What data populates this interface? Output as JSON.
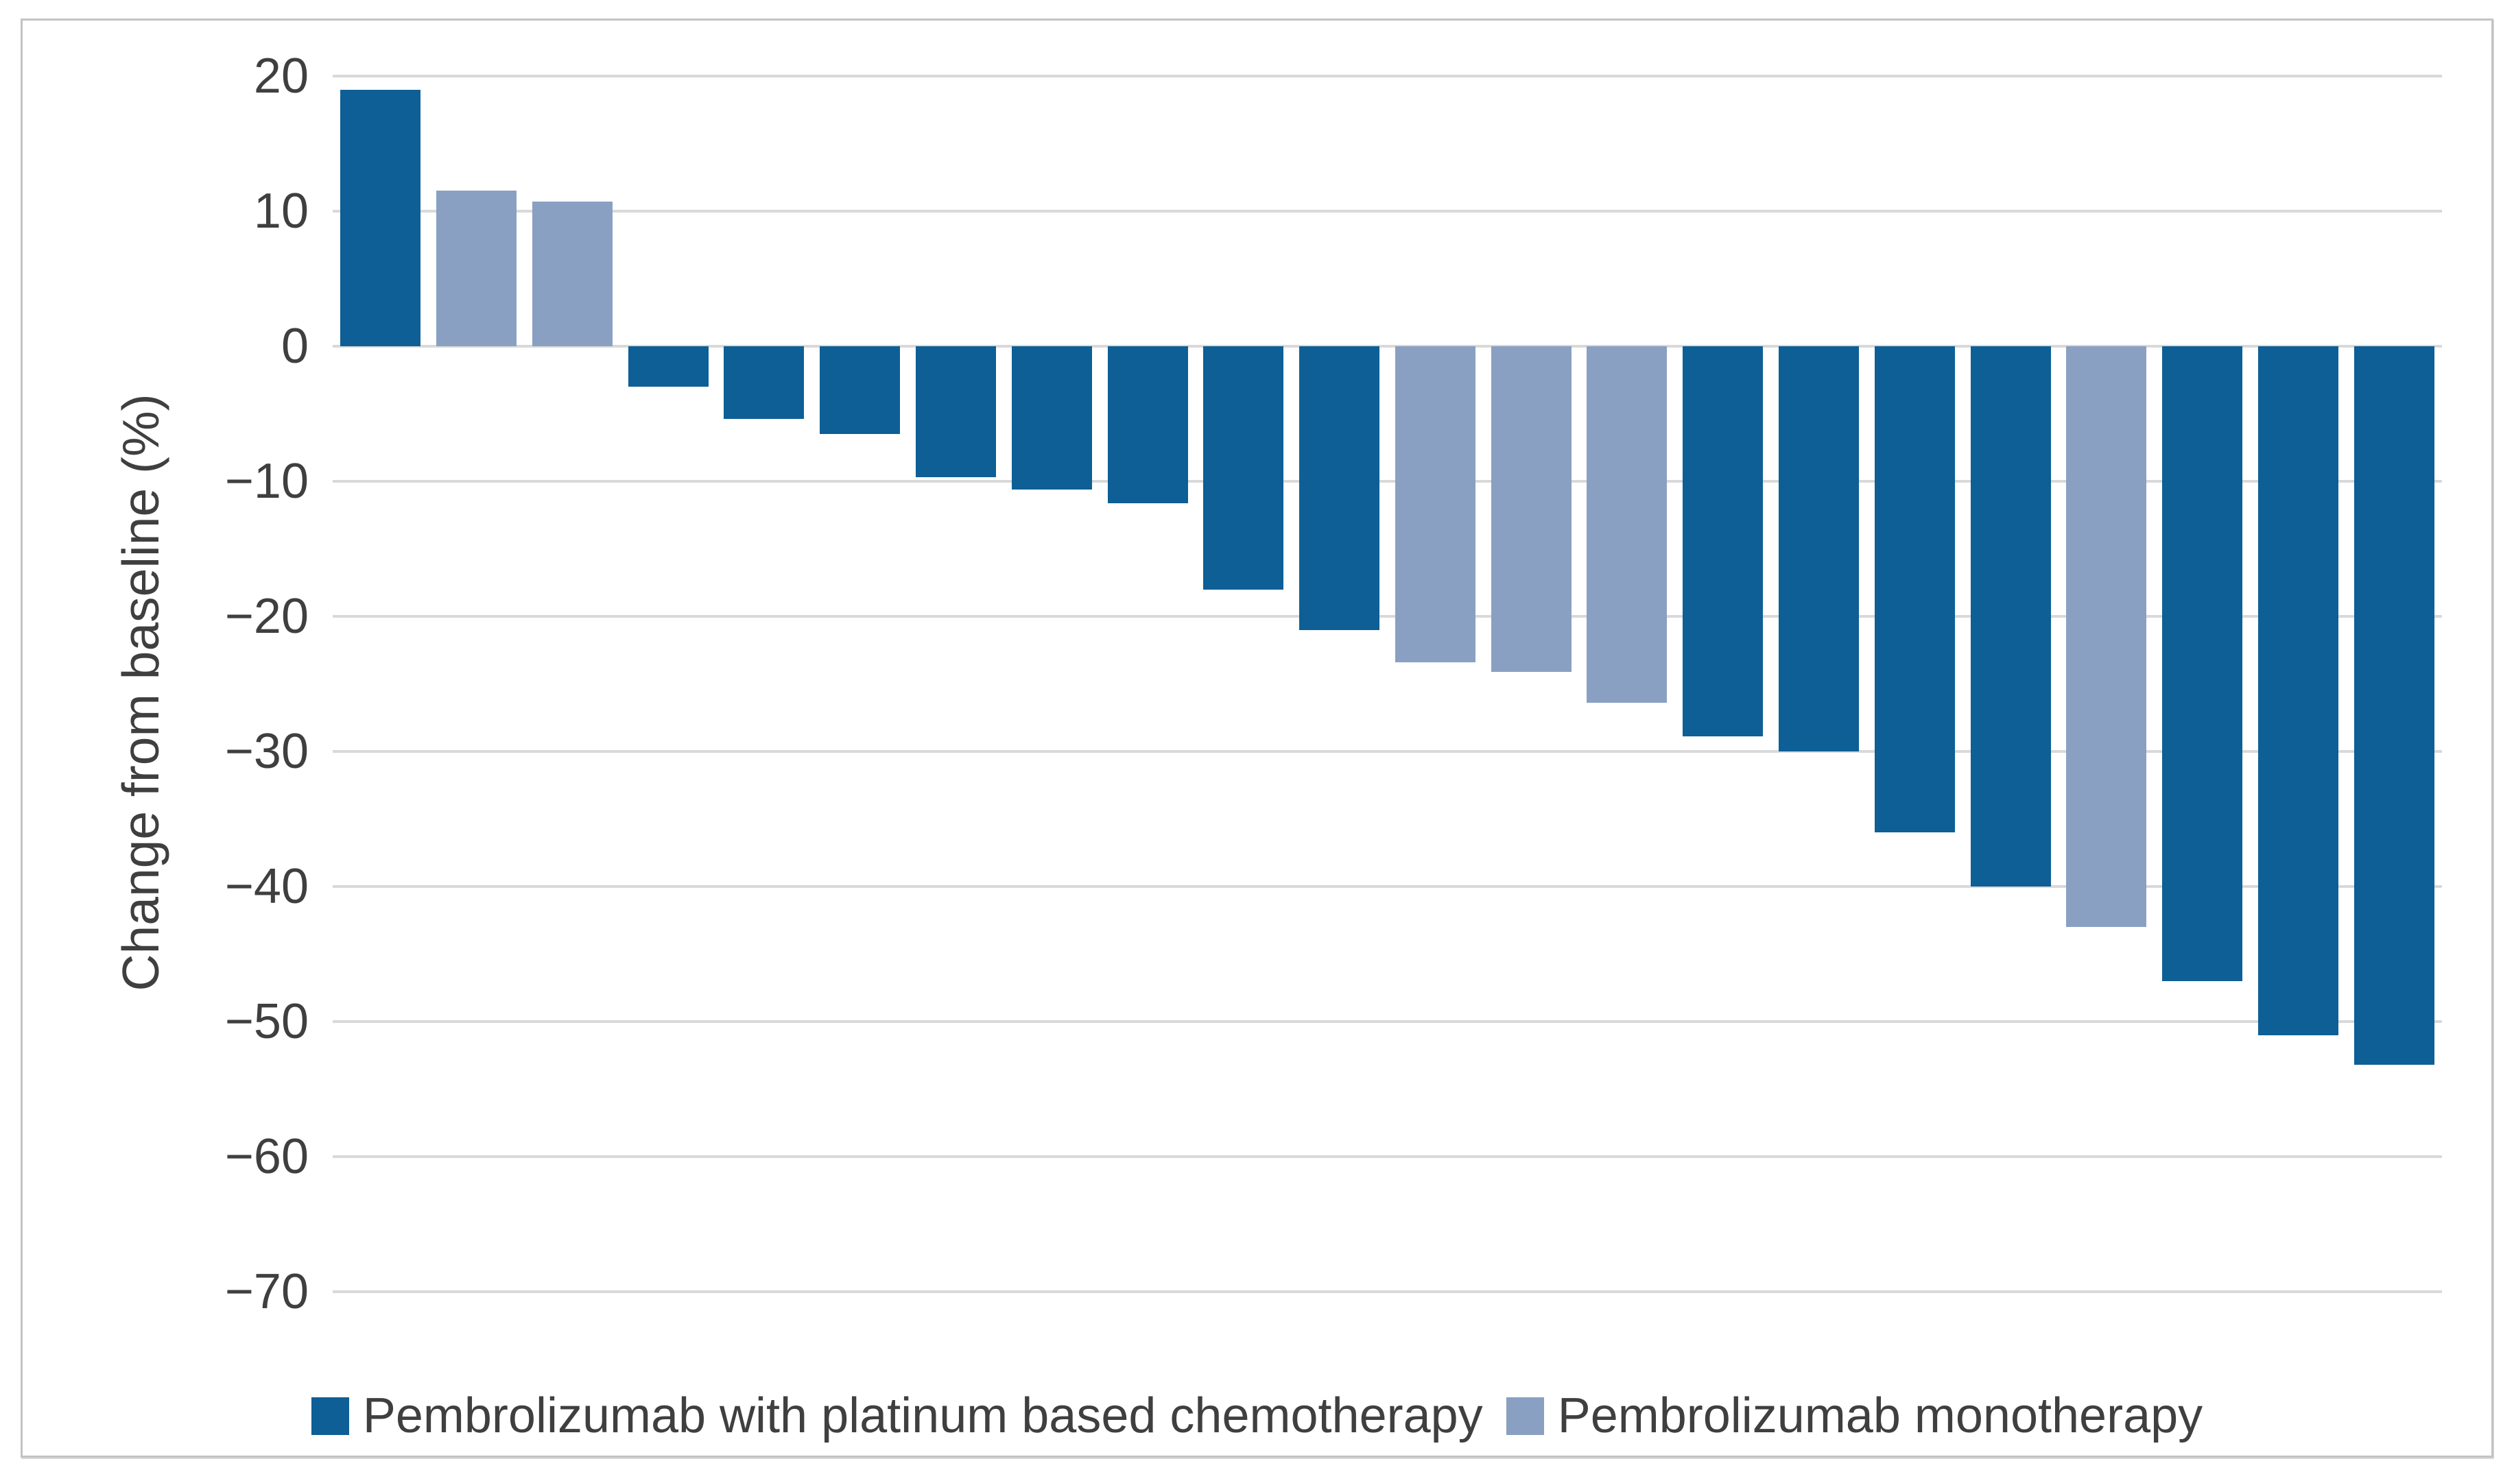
{
  "chart_data": {
    "type": "bar",
    "subtype": "waterfall",
    "title": "",
    "xlabel": "",
    "ylabel": "Change from baseline (%)",
    "ylim": [
      -75,
      22
    ],
    "yticks": [
      20,
      10,
      0,
      -10,
      -20,
      -30,
      -40,
      -50,
      -60,
      -70
    ],
    "ytick_labels": [
      "20",
      "10",
      "0",
      "−10",
      "−20",
      "−30",
      "−40",
      "−50",
      "−60",
      "−70"
    ],
    "grid": true,
    "legend_position": "bottom",
    "series": [
      {
        "name": "Pembrolizumab with platinum based chemotherapy",
        "color": "#0d5f96"
      },
      {
        "name": "Pembrolizumab monotherapy",
        "color": "#8aa0c3"
      }
    ],
    "bars": [
      {
        "series": 0,
        "value": 19.0
      },
      {
        "series": 1,
        "value": 11.5
      },
      {
        "series": 1,
        "value": 10.7
      },
      {
        "series": 0,
        "value": -3.0
      },
      {
        "series": 0,
        "value": -5.4
      },
      {
        "series": 0,
        "value": -6.5
      },
      {
        "series": 0,
        "value": -9.7
      },
      {
        "series": 0,
        "value": -10.6
      },
      {
        "series": 0,
        "value": -11.6
      },
      {
        "series": 0,
        "value": -18.0
      },
      {
        "series": 0,
        "value": -21.0
      },
      {
        "series": 1,
        "value": -23.4
      },
      {
        "series": 1,
        "value": -24.1
      },
      {
        "series": 1,
        "value": -26.4
      },
      {
        "series": 0,
        "value": -28.9
      },
      {
        "series": 0,
        "value": -30.0
      },
      {
        "series": 0,
        "value": -36.0
      },
      {
        "series": 0,
        "value": -40.0
      },
      {
        "series": 1,
        "value": -43.0
      },
      {
        "series": 0,
        "value": -47.0
      },
      {
        "series": 0,
        "value": -51.0
      },
      {
        "series": 0,
        "value": -53.2
      }
    ]
  },
  "colors": {
    "combo_bar": "#0d5f96",
    "mono_bar": "#8aa0c3",
    "gridline": "#d9d9d9",
    "text": "#3f3f3f",
    "frame_border": "#c3c3c3",
    "background": "#ffffff"
  }
}
